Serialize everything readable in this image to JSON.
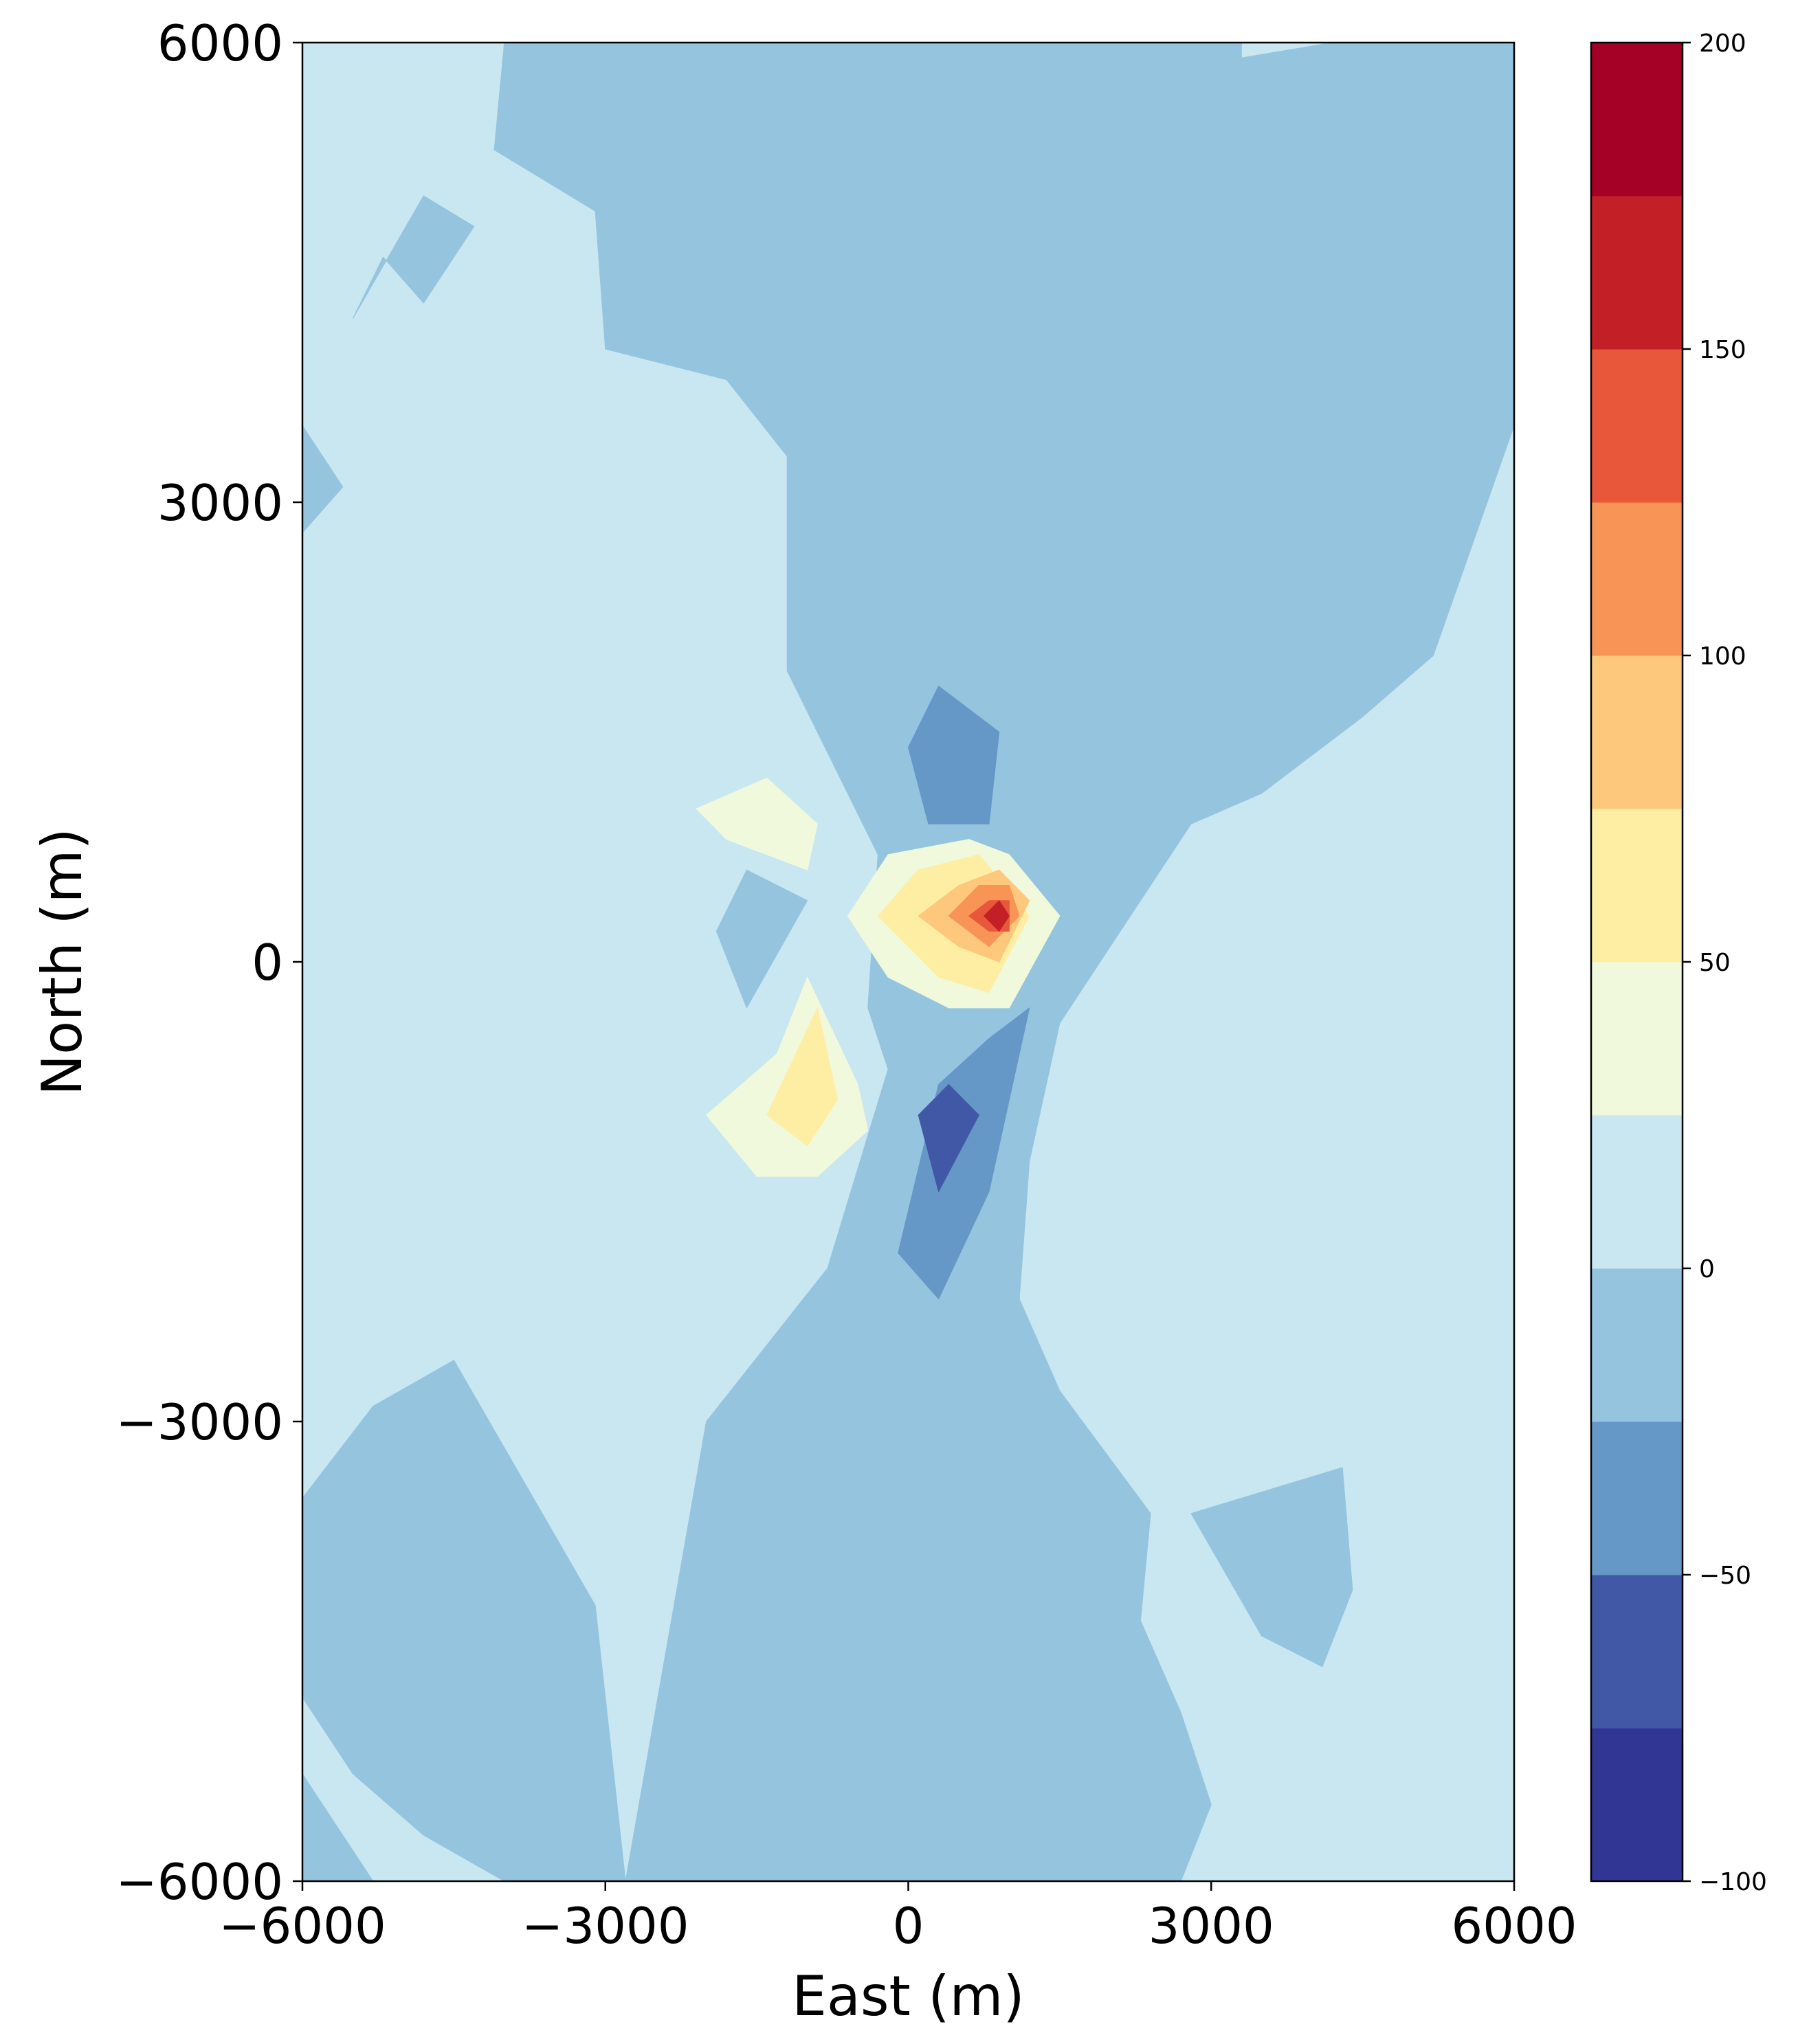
{
  "chart_data": {
    "type": "heatmap",
    "subtype": "filled-contour",
    "title": "",
    "xlabel": "East (m)",
    "ylabel": "North (m)",
    "xlim": [
      -6000,
      6000
    ],
    "ylim": [
      -6000,
      6000
    ],
    "x_ticks": [
      "−6000",
      "−3000",
      "0",
      "3000",
      "6000"
    ],
    "y_ticks": [
      "−6000",
      "−3000",
      "0",
      "3000",
      "6000"
    ],
    "colorbar": {
      "levels": [
        -100,
        -75,
        -50,
        -25,
        0,
        25,
        50,
        75,
        100,
        125,
        150,
        175,
        200
      ],
      "colors": [
        "#313695",
        "#4158a7",
        "#6597c7",
        "#94c4de",
        "#c8e7f1",
        "#f0f9dc",
        "#feeea4",
        "#fdc87b",
        "#f79456",
        "#e8573a",
        "#c31f27",
        "#a50026"
      ],
      "tick_values": [
        -100,
        -50,
        0,
        50,
        100,
        150,
        200
      ],
      "tick_labels": [
        "−100",
        "−50",
        "0",
        "50",
        "100",
        "150",
        "200"
      ]
    },
    "background_level_range": [
      0,
      25
    ],
    "regions": [
      {
        "level": [
          -25,
          0
        ],
        "polygon": [
          [
            -4000,
            6000
          ],
          [
            3300,
            6000
          ],
          [
            3300,
            5900
          ],
          [
            4200,
            6000
          ],
          [
            6000,
            6000
          ],
          [
            6000,
            3500
          ],
          [
            5200,
            2000
          ],
          [
            4500,
            1600
          ],
          [
            3500,
            1100
          ],
          [
            2800,
            900
          ],
          [
            2000,
            100
          ],
          [
            1500,
            -400
          ],
          [
            1200,
            -1300
          ],
          [
            1100,
            -2200
          ],
          [
            1500,
            -2800
          ],
          [
            2400,
            -3600
          ],
          [
            2300,
            -4300
          ],
          [
            2700,
            -4900
          ],
          [
            3000,
            -5500
          ],
          [
            2700,
            -6000
          ],
          [
            -2800,
            -6000
          ],
          [
            -3100,
            -4200
          ],
          [
            -3800,
            -3400
          ],
          [
            -4500,
            -2600
          ],
          [
            -5300,
            -2900
          ],
          [
            -6000,
            -3500
          ],
          [
            -6000,
            -4800
          ],
          [
            -5500,
            -5300
          ],
          [
            -4800,
            -5700
          ],
          [
            -4000,
            -6000
          ],
          [
            -5300,
            -6000
          ],
          [
            -6000,
            -5300
          ],
          [
            -6000,
            -6000
          ],
          [
            -2800,
            -6000
          ],
          [
            -2000,
            -3000
          ],
          [
            -800,
            -2000
          ],
          [
            -200,
            -700
          ],
          [
            -400,
            -300
          ],
          [
            -300,
            700
          ],
          [
            -1200,
            1900
          ],
          [
            -1200,
            3300
          ],
          [
            -1800,
            3800
          ],
          [
            -3000,
            4000
          ],
          [
            -3100,
            4900
          ],
          [
            -4100,
            5300
          ]
        ]
      },
      {
        "level": [
          -25,
          0
        ],
        "polygon": [
          [
            -5500,
            4200
          ],
          [
            -4800,
            5000
          ],
          [
            -4300,
            4800
          ],
          [
            -4800,
            4300
          ],
          [
            -5200,
            4600
          ]
        ]
      },
      {
        "level": [
          -25,
          0
        ],
        "polygon": [
          [
            -1900,
            200
          ],
          [
            -1600,
            600
          ],
          [
            -1000,
            400
          ],
          [
            -1600,
            -300
          ]
        ]
      },
      {
        "level": [
          -25,
          0
        ],
        "polygon": [
          [
            -6000,
            2800
          ],
          [
            -5600,
            3100
          ],
          [
            -6000,
            3500
          ]
        ]
      },
      {
        "level": [
          -25,
          0
        ],
        "polygon": [
          [
            2800,
            -3600
          ],
          [
            4300,
            -3300
          ],
          [
            4400,
            -4100
          ],
          [
            4100,
            -4600
          ],
          [
            3500,
            -4400
          ]
        ]
      },
      {
        "level": [
          -50,
          -25
        ],
        "polygon": [
          [
            0,
            1400
          ],
          [
            300,
            1800
          ],
          [
            900,
            1500
          ],
          [
            800,
            900
          ],
          [
            200,
            900
          ]
        ]
      },
      {
        "level": [
          -50,
          -25
        ],
        "polygon": [
          [
            -100,
            -1900
          ],
          [
            300,
            -2200
          ],
          [
            800,
            -1500
          ],
          [
            1200,
            -300
          ],
          [
            800,
            -500
          ],
          [
            300,
            -800
          ]
        ]
      },
      {
        "level": [
          -75,
          -50
        ],
        "polygon": [
          [
            100,
            -1000
          ],
          [
            300,
            -1500
          ],
          [
            700,
            -1000
          ],
          [
            400,
            -800
          ]
        ]
      },
      {
        "level": [
          25,
          50
        ],
        "polygon": [
          [
            -2100,
            1000
          ],
          [
            -1400,
            1200
          ],
          [
            -900,
            900
          ],
          [
            -1000,
            600
          ],
          [
            -1800,
            800
          ]
        ]
      },
      {
        "level": [
          25,
          50
        ],
        "polygon": [
          [
            -600,
            300
          ],
          [
            -200,
            700
          ],
          [
            600,
            800
          ],
          [
            1000,
            700
          ],
          [
            1500,
            300
          ],
          [
            1000,
            -300
          ],
          [
            400,
            -300
          ],
          [
            -200,
            -100
          ]
        ]
      },
      {
        "level": [
          25,
          50
        ],
        "polygon": [
          [
            -2000,
            -1000
          ],
          [
            -1500,
            -1400
          ],
          [
            -900,
            -1400
          ],
          [
            -400,
            -1100
          ],
          [
            -500,
            -800
          ],
          [
            -1000,
            -100
          ],
          [
            -1300,
            -600
          ]
        ]
      },
      {
        "level": [
          50,
          75
        ],
        "polygon": [
          [
            -300,
            300
          ],
          [
            100,
            600
          ],
          [
            700,
            700
          ],
          [
            1200,
            300
          ],
          [
            800,
            -200
          ],
          [
            300,
            -100
          ]
        ]
      },
      {
        "level": [
          50,
          75
        ],
        "polygon": [
          [
            -1400,
            -1000
          ],
          [
            -1000,
            -1200
          ],
          [
            -700,
            -900
          ],
          [
            -900,
            -300
          ]
        ]
      },
      {
        "level": [
          75,
          100
        ],
        "polygon": [
          [
            100,
            300
          ],
          [
            500,
            500
          ],
          [
            900,
            600
          ],
          [
            1200,
            400
          ],
          [
            900,
            0
          ],
          [
            500,
            100
          ]
        ]
      },
      {
        "level": [
          100,
          125
        ],
        "polygon": [
          [
            400,
            300
          ],
          [
            700,
            500
          ],
          [
            1000,
            500
          ],
          [
            1100,
            300
          ],
          [
            800,
            100
          ]
        ]
      },
      {
        "level": [
          125,
          150
        ],
        "polygon": [
          [
            600,
            300
          ],
          [
            800,
            400
          ],
          [
            1000,
            400
          ],
          [
            1000,
            200
          ],
          [
            800,
            200
          ]
        ]
      },
      {
        "level": [
          150,
          175
        ],
        "polygon": [
          [
            750,
            300
          ],
          [
            900,
            400
          ],
          [
            1000,
            300
          ],
          [
            900,
            200
          ]
        ]
      }
    ]
  }
}
